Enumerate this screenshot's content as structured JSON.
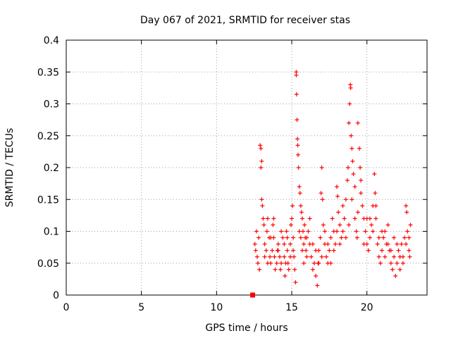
{
  "chart_data": {
    "type": "scatter",
    "title": "Day 067 of 2021, SRMTID for receiver stas",
    "xlabel": "GPS time / hours",
    "ylabel": "SRMTID / TECUs",
    "xlim": [
      0,
      24
    ],
    "ylim": [
      0,
      0.4
    ],
    "x_ticks": [
      "0",
      "5",
      "10",
      "15",
      "20"
    ],
    "y_ticks": [
      "0",
      "0.05",
      "0.1",
      "0.15",
      "0.2",
      "0.25",
      "0.3",
      "0.35",
      "0.4"
    ],
    "x_tick_values": [
      0,
      5,
      10,
      15,
      20
    ],
    "y_tick_values": [
      0,
      0.05,
      0.1,
      0.15,
      0.2,
      0.25,
      0.3,
      0.35,
      0.4
    ],
    "grid": true,
    "marker": "plus",
    "color": "#ff0000",
    "square_points": [
      {
        "x": 12.4,
        "y": 0.0
      }
    ],
    "points": [
      [
        12.55,
        0.08
      ],
      [
        12.6,
        0.07
      ],
      [
        12.65,
        0.1
      ],
      [
        12.7,
        0.06
      ],
      [
        12.75,
        0.05
      ],
      [
        12.8,
        0.09
      ],
      [
        12.85,
        0.04
      ],
      [
        12.9,
        0.235
      ],
      [
        12.95,
        0.23
      ],
      [
        13.0,
        0.21
      ],
      [
        12.95,
        0.2
      ],
      [
        13.0,
        0.15
      ],
      [
        13.05,
        0.14
      ],
      [
        13.1,
        0.12
      ],
      [
        13.15,
        0.11
      ],
      [
        13.2,
        0.08
      ],
      [
        13.3,
        0.07
      ],
      [
        13.35,
        0.1
      ],
      [
        13.4,
        0.12
      ],
      [
        13.5,
        0.09
      ],
      [
        13.55,
        0.06
      ],
      [
        13.6,
        0.05
      ],
      [
        13.7,
        0.07
      ],
      [
        13.75,
        0.11
      ],
      [
        13.8,
        0.09
      ],
      [
        13.85,
        0.06
      ],
      [
        13.9,
        0.04
      ],
      [
        14.0,
        0.05
      ],
      [
        14.05,
        0.07
      ],
      [
        14.1,
        0.08
      ],
      [
        14.2,
        0.06
      ],
      [
        14.25,
        0.04
      ],
      [
        14.3,
        0.05
      ],
      [
        14.4,
        0.09
      ],
      [
        14.5,
        0.06
      ],
      [
        14.55,
        0.03
      ],
      [
        14.6,
        0.05
      ],
      [
        14.65,
        0.1
      ],
      [
        14.7,
        0.07
      ],
      [
        14.75,
        0.05
      ],
      [
        14.8,
        0.04
      ],
      [
        14.9,
        0.08
      ],
      [
        14.95,
        0.11
      ],
      [
        15.0,
        0.12
      ],
      [
        15.05,
        0.14
      ],
      [
        15.1,
        0.09
      ],
      [
        15.15,
        0.06
      ],
      [
        15.2,
        0.04
      ],
      [
        15.25,
        0.02
      ],
      [
        15.3,
        0.35
      ],
      [
        15.3,
        0.345
      ],
      [
        15.32,
        0.315
      ],
      [
        15.35,
        0.275
      ],
      [
        15.38,
        0.245
      ],
      [
        15.4,
        0.235
      ],
      [
        15.42,
        0.22
      ],
      [
        15.45,
        0.2
      ],
      [
        15.5,
        0.17
      ],
      [
        15.55,
        0.16
      ],
      [
        15.6,
        0.14
      ],
      [
        15.65,
        0.13
      ],
      [
        15.7,
        0.12
      ],
      [
        15.75,
        0.1
      ],
      [
        15.8,
        0.08
      ],
      [
        15.85,
        0.11
      ],
      [
        15.9,
        0.09
      ],
      [
        15.95,
        0.07
      ],
      [
        16.0,
        0.06
      ],
      [
        16.1,
        0.1
      ],
      [
        16.2,
        0.08
      ],
      [
        16.3,
        0.06
      ],
      [
        16.4,
        0.04
      ],
      [
        16.5,
        0.05
      ],
      [
        16.6,
        0.03
      ],
      [
        16.7,
        0.015
      ],
      [
        16.75,
        0.05
      ],
      [
        16.8,
        0.07
      ],
      [
        16.9,
        0.09
      ],
      [
        16.95,
        0.16
      ],
      [
        17.0,
        0.2
      ],
      [
        17.05,
        0.15
      ],
      [
        17.1,
        0.11
      ],
      [
        17.2,
        0.08
      ],
      [
        17.3,
        0.06
      ],
      [
        17.4,
        0.05
      ],
      [
        17.5,
        0.07
      ],
      [
        17.6,
        0.09
      ],
      [
        17.7,
        0.12
      ],
      [
        17.8,
        0.1
      ],
      [
        17.9,
        0.08
      ],
      [
        18.0,
        0.17
      ],
      [
        18.05,
        0.155
      ],
      [
        18.1,
        0.13
      ],
      [
        18.2,
        0.11
      ],
      [
        18.3,
        0.09
      ],
      [
        18.4,
        0.14
      ],
      [
        18.5,
        0.12
      ],
      [
        18.6,
        0.15
      ],
      [
        18.7,
        0.18
      ],
      [
        18.75,
        0.2
      ],
      [
        18.8,
        0.27
      ],
      [
        18.85,
        0.3
      ],
      [
        18.9,
        0.33
      ],
      [
        18.92,
        0.325
      ],
      [
        18.95,
        0.25
      ],
      [
        19.0,
        0.23
      ],
      [
        19.05,
        0.21
      ],
      [
        19.1,
        0.19
      ],
      [
        19.2,
        0.12
      ],
      [
        19.3,
        0.1
      ],
      [
        19.35,
        0.09
      ],
      [
        19.4,
        0.27
      ],
      [
        19.5,
        0.23
      ],
      [
        19.55,
        0.2
      ],
      [
        19.6,
        0.18
      ],
      [
        19.7,
        0.14
      ],
      [
        19.8,
        0.12
      ],
      [
        19.9,
        0.1
      ],
      [
        20.0,
        0.08
      ],
      [
        20.1,
        0.07
      ],
      [
        20.2,
        0.12
      ],
      [
        20.3,
        0.11
      ],
      [
        20.4,
        0.14
      ],
      [
        20.5,
        0.19
      ],
      [
        20.55,
        0.16
      ],
      [
        20.6,
        0.12
      ],
      [
        20.7,
        0.08
      ],
      [
        20.8,
        0.06
      ],
      [
        20.9,
        0.05
      ],
      [
        21.0,
        0.07
      ],
      [
        21.1,
        0.09
      ],
      [
        21.2,
        0.1
      ],
      [
        21.3,
        0.08
      ],
      [
        21.4,
        0.11
      ],
      [
        21.5,
        0.07
      ],
      [
        21.6,
        0.05
      ],
      [
        21.7,
        0.04
      ],
      [
        21.8,
        0.06
      ],
      [
        21.9,
        0.03
      ],
      [
        22.0,
        0.05
      ],
      [
        22.1,
        0.07
      ],
      [
        22.2,
        0.06
      ],
      [
        22.3,
        0.08
      ],
      [
        22.4,
        0.05
      ],
      [
        22.5,
        0.09
      ],
      [
        22.6,
        0.14
      ],
      [
        22.65,
        0.13
      ],
      [
        22.7,
        0.1
      ],
      [
        22.8,
        0.07
      ],
      [
        22.85,
        0.06
      ],
      [
        22.9,
        0.11
      ],
      [
        13.2,
        0.06
      ],
      [
        13.4,
        0.05
      ],
      [
        13.6,
        0.09
      ],
      [
        13.8,
        0.12
      ],
      [
        14.1,
        0.07
      ],
      [
        14.3,
        0.1
      ],
      [
        14.5,
        0.08
      ],
      [
        14.7,
        0.09
      ],
      [
        14.9,
        0.06
      ],
      [
        15.1,
        0.07
      ],
      [
        15.5,
        0.1
      ],
      [
        15.6,
        0.09
      ],
      [
        15.7,
        0.07
      ],
      [
        15.8,
        0.05
      ],
      [
        16.0,
        0.09
      ],
      [
        16.2,
        0.12
      ],
      [
        16.4,
        0.08
      ],
      [
        16.6,
        0.07
      ],
      [
        16.8,
        0.05
      ],
      [
        17.0,
        0.06
      ],
      [
        17.2,
        0.1
      ],
      [
        17.4,
        0.08
      ],
      [
        17.6,
        0.05
      ],
      [
        17.8,
        0.07
      ],
      [
        18.0,
        0.1
      ],
      [
        18.2,
        0.08
      ],
      [
        18.4,
        0.1
      ],
      [
        18.6,
        0.09
      ],
      [
        18.8,
        0.11
      ],
      [
        19.0,
        0.15
      ],
      [
        19.2,
        0.17
      ],
      [
        19.4,
        0.13
      ],
      [
        19.6,
        0.16
      ],
      [
        19.8,
        0.08
      ],
      [
        20.0,
        0.12
      ],
      [
        20.2,
        0.09
      ],
      [
        20.4,
        0.1
      ],
      [
        20.6,
        0.14
      ],
      [
        20.8,
        0.09
      ],
      [
        21.0,
        0.1
      ],
      [
        21.2,
        0.06
      ],
      [
        21.4,
        0.08
      ],
      [
        21.6,
        0.07
      ],
      [
        21.8,
        0.09
      ],
      [
        22.0,
        0.08
      ],
      [
        22.2,
        0.04
      ],
      [
        22.4,
        0.06
      ],
      [
        22.6,
        0.08
      ],
      [
        22.8,
        0.09
      ]
    ]
  }
}
